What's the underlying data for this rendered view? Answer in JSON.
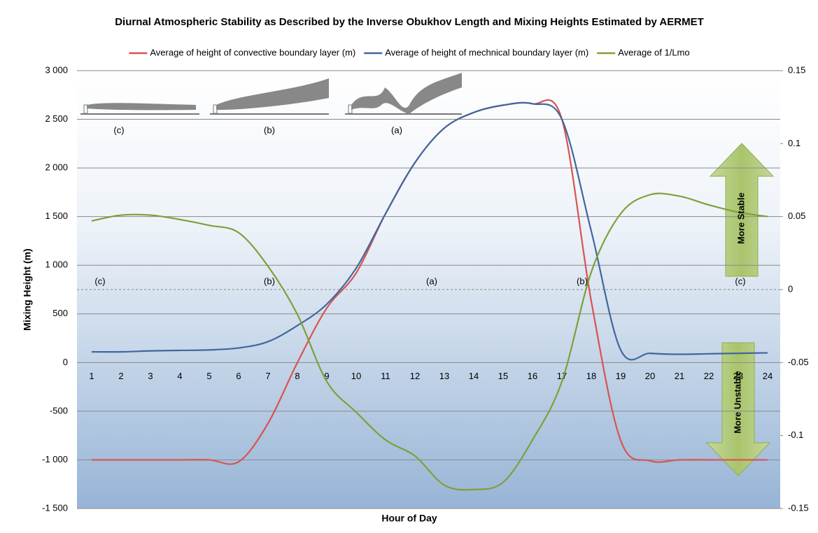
{
  "chart_data": {
    "type": "line",
    "title": "Diurnal Atmospheric Stability as Described by the Inverse Obukhov Length and Mixing Heights Estimated by AERMET",
    "x_label": "Hour of Day",
    "y_label": "Mixing Height (m)",
    "categories": [
      1,
      2,
      3,
      4,
      5,
      6,
      7,
      8,
      9,
      10,
      11,
      12,
      13,
      14,
      15,
      16,
      17,
      18,
      19,
      20,
      21,
      22,
      23,
      24
    ],
    "series": [
      {
        "name": "Average of height of convective boundary layer (m)",
        "color": "#d9534f",
        "values": [
          -1000,
          -1000,
          -1000,
          -1000,
          -1000,
          -1020,
          -625,
          0,
          560,
          920,
          1530,
          2055,
          2410,
          2570,
          2645,
          2660,
          2500,
          630,
          -800,
          -1010,
          -1000,
          -1000,
          -1000,
          -1000
        ]
      },
      {
        "name": "Average of height of mechnical boundary layer (m)",
        "color": "#41679d",
        "values": [
          110,
          110,
          120,
          125,
          130,
          150,
          215,
          380,
          600,
          970,
          1530,
          2055,
          2410,
          2570,
          2645,
          2660,
          2500,
          1350,
          130,
          95,
          85,
          90,
          95,
          100
        ]
      },
      {
        "name": "Average of 1/Lmo",
        "color": "#7f9f3a",
        "axis": "y2",
        "values": [
          0.047,
          0.051,
          0.051,
          0.048,
          0.044,
          0.039,
          0.016,
          -0.017,
          -0.063,
          -0.084,
          -0.103,
          -0.114,
          -0.134,
          -0.137,
          -0.132,
          -0.103,
          -0.063,
          0.012,
          0.052,
          0.065,
          0.064,
          0.058,
          0.053,
          0.05
        ]
      }
    ],
    "ylim": [
      -1500,
      3000
    ],
    "yticks": [
      {
        "value": -1500,
        "label": "-1 500"
      },
      {
        "value": -1000,
        "label": "-1 000"
      },
      -500,
      0,
      500,
      {
        "value": 1000,
        "label": "1 000"
      },
      {
        "value": 1500,
        "label": "1 500"
      },
      {
        "value": 2000,
        "label": "2 000"
      },
      {
        "value": 2500,
        "label": "2 500"
      },
      {
        "value": 3000,
        "label": "3 000"
      }
    ],
    "y2lim": [
      -0.15,
      0.15
    ],
    "y2ticks": [
      -0.15,
      -0.1,
      -0.05,
      0,
      0.05,
      0.1,
      0.15
    ],
    "grid": true,
    "legend": "top",
    "annotations": [
      "(c)",
      "(b)",
      "(a)",
      "(c)",
      "(b)",
      "(a)",
      "(b)",
      "(c)",
      "More Stable",
      "More Unstable"
    ]
  }
}
